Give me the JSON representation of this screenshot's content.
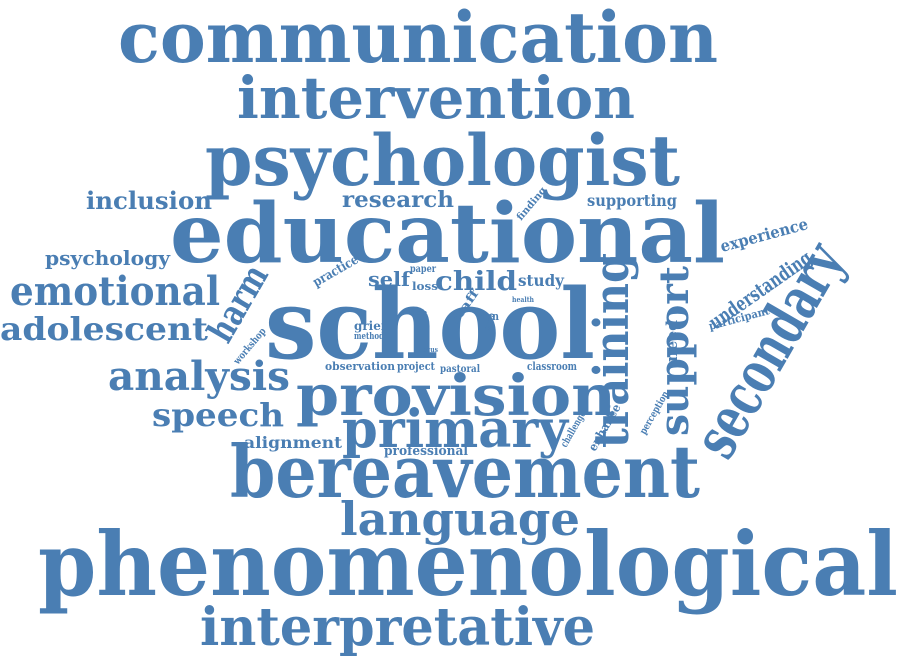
{
  "word_color": "#4a7eb3",
  "background_color": "#ffffff",
  "words": [
    "communication",
    "intervention",
    "psychologist",
    "educational",
    "school",
    "phenomenological",
    "bereavement",
    "provision",
    "primary",
    "language",
    "interpretative",
    "secondary",
    "training",
    "support",
    "emotional",
    "adolescent",
    "analysis",
    "speech",
    "harm",
    "inclusion",
    "research",
    "psychology",
    "child",
    "self",
    "understanding",
    "experience",
    "supporting",
    "need",
    "alignment",
    "professional",
    "grief",
    "observation",
    "project",
    "pastoral",
    "classroom",
    "practice",
    "study",
    "finding",
    "paper",
    "loss",
    "staff",
    "slcn",
    "method",
    "role",
    "health",
    "group",
    "workshop",
    "participant",
    "perception",
    "enhance",
    "challenge",
    "focus"
  ]
}
